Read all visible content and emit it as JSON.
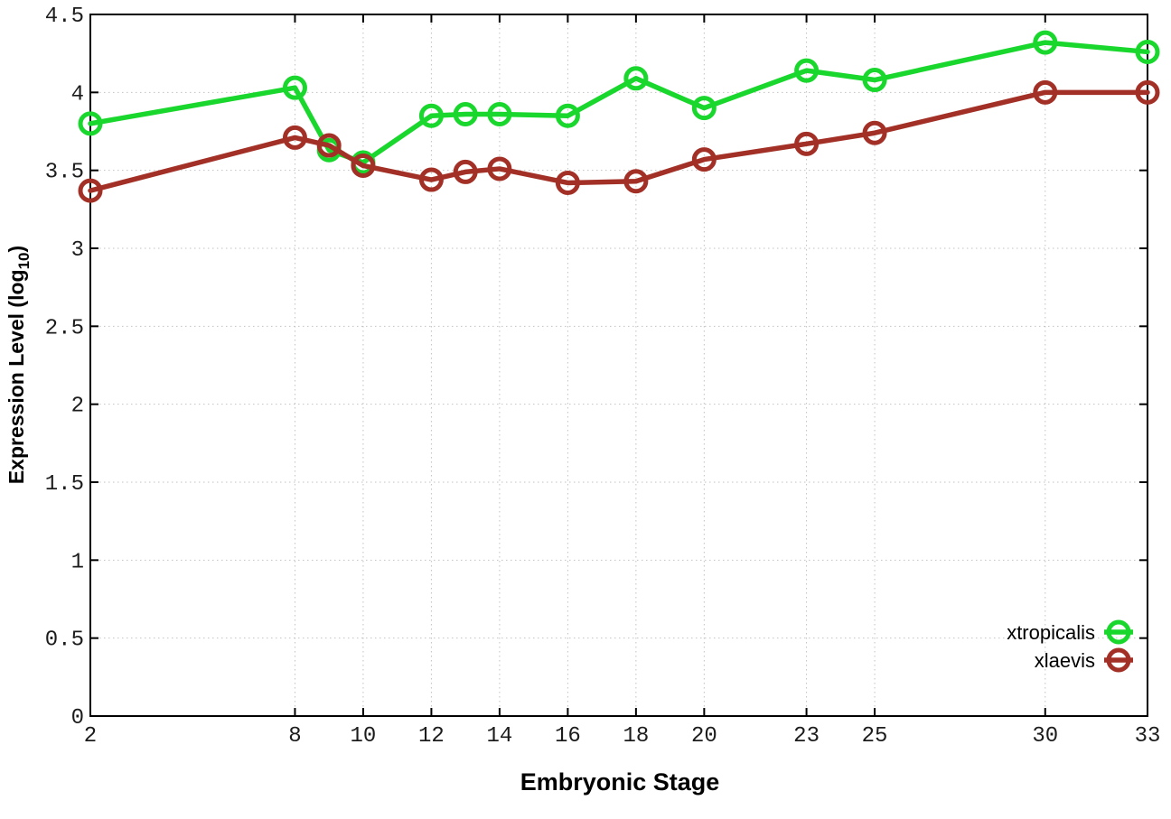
{
  "chart_data": {
    "type": "line",
    "title": "",
    "xlabel": "Embryonic Stage",
    "ylabel_prefix": "Expression Level (log",
    "ylabel_subscript": "10",
    "ylabel_suffix": ")",
    "x": [
      2,
      8,
      9,
      10,
      12,
      13,
      14,
      16,
      18,
      20,
      23,
      25,
      30,
      33
    ],
    "xticks": [
      2,
      8,
      10,
      12,
      14,
      16,
      18,
      20,
      23,
      25,
      30,
      33
    ],
    "yticks": [
      0,
      0.5,
      1,
      1.5,
      2,
      2.5,
      3,
      3.5,
      4,
      4.5
    ],
    "xlim": [
      2,
      33
    ],
    "ylim": [
      0,
      4.5
    ],
    "grid": "dotted",
    "legend_position": "bottom-right",
    "series": [
      {
        "name": "xtropicalis",
        "color": "#19d72d",
        "values": [
          3.8,
          4.03,
          3.63,
          3.55,
          3.85,
          3.86,
          3.86,
          3.85,
          4.09,
          3.9,
          4.14,
          4.08,
          4.32,
          4.26
        ]
      },
      {
        "name": "xlaevis",
        "color": "#a33026",
        "values": [
          3.37,
          3.71,
          3.66,
          3.53,
          3.44,
          3.49,
          3.51,
          3.42,
          3.43,
          3.57,
          3.67,
          3.74,
          4.0,
          4.0
        ]
      }
    ]
  },
  "style": {
    "background": "#ffffff",
    "grid_color": "#c2c2c2",
    "axis_color": "#000000",
    "tick_label_color": "#1c1c1c",
    "legend_text_color": "#000000"
  }
}
